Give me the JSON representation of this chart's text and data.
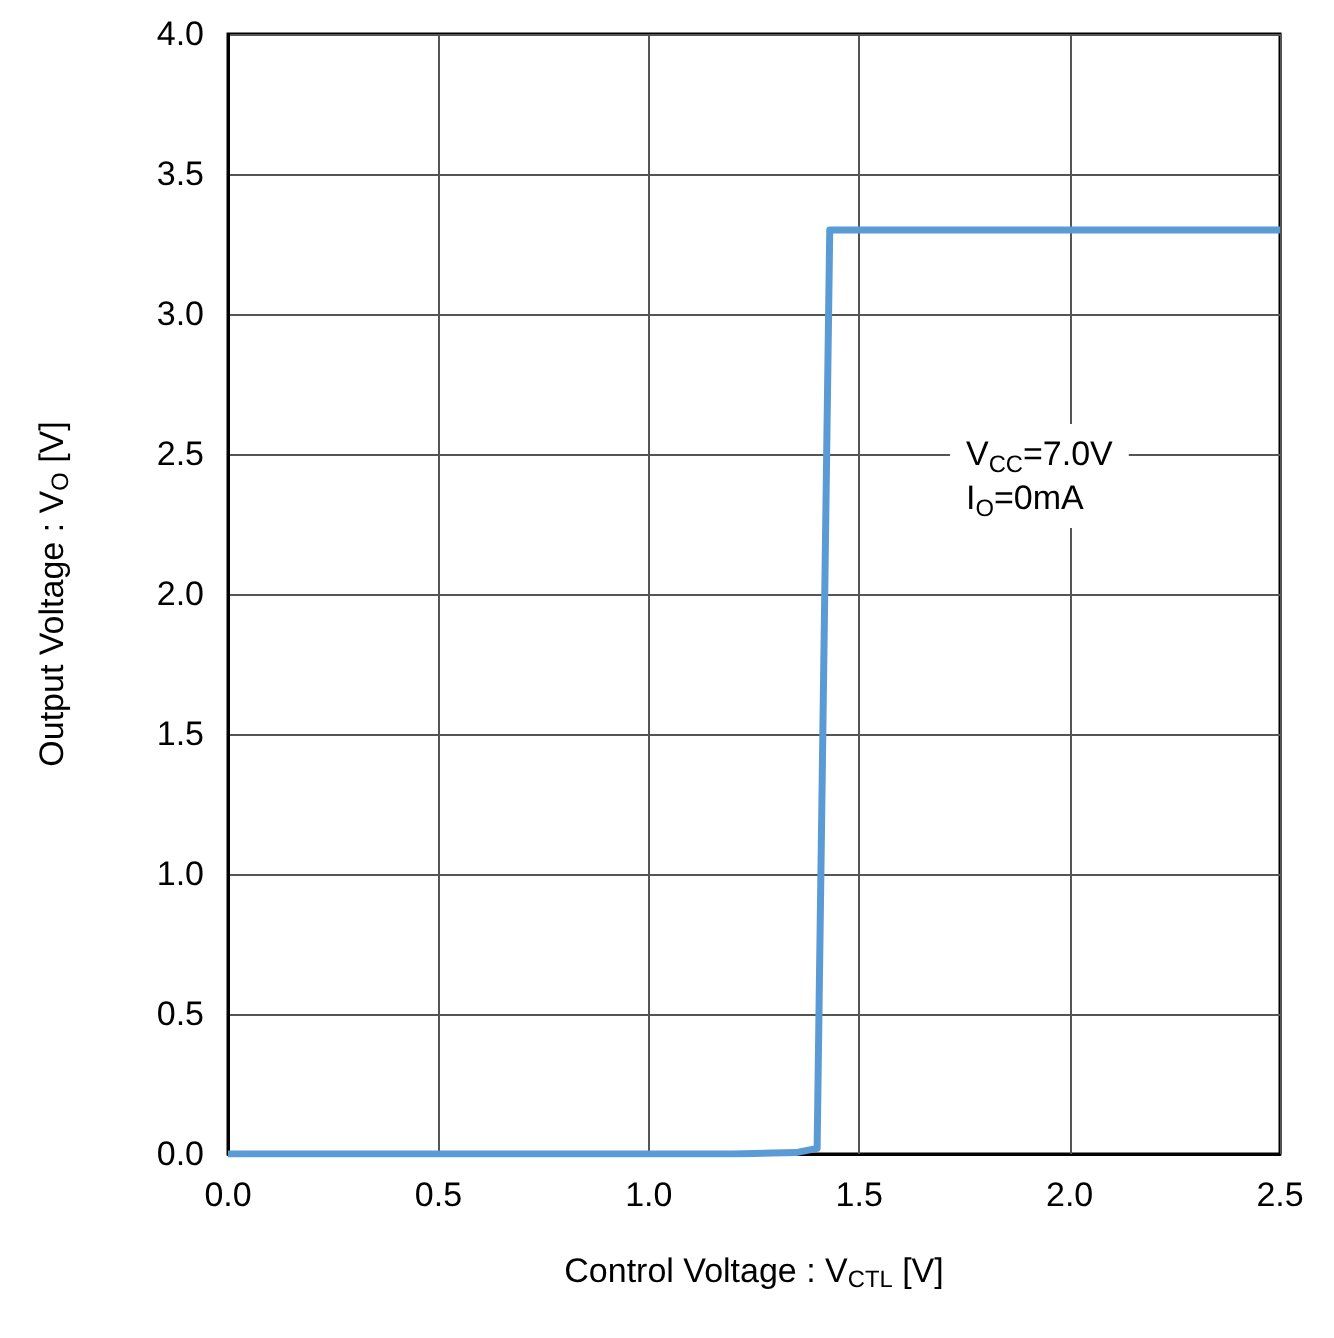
{
  "chart_data": {
    "type": "line",
    "xlabel": "Control Voltage : V$_{CTL}$ [V]",
    "ylabel": "Output Voltage : V$_{O}$ [V]",
    "annotations": [
      "V$_{CC}$=7.0V",
      "I$_{O}$=0mA"
    ],
    "x": [
      0,
      1.2,
      1.35,
      1.4,
      1.43,
      2.5
    ],
    "series": [
      {
        "color": "#5b9bd5",
        "values": [
          0,
          0,
          0.005,
          0.02,
          3.3,
          3.3
        ]
      }
    ],
    "xlim": [
      0,
      2.5
    ],
    "ylim": [
      0,
      4
    ],
    "xticks": [
      {
        "value": 0,
        "label": "0.0"
      },
      {
        "value": 0.5,
        "label": "0.5"
      },
      {
        "value": 1,
        "label": "1.0"
      },
      {
        "value": 1.5,
        "label": "1.5"
      },
      {
        "value": 2,
        "label": "2.0"
      },
      {
        "value": 2.5,
        "label": "2.5"
      }
    ],
    "yticks": [
      {
        "value": 0,
        "label": "0.0"
      },
      {
        "value": 0.5,
        "label": "0.5"
      },
      {
        "value": 1,
        "label": "1.0"
      },
      {
        "value": 1.5,
        "label": "1.5"
      },
      {
        "value": 2,
        "label": "2.0"
      },
      {
        "value": 2.5,
        "label": "2.5"
      },
      {
        "value": 3,
        "label": "3.0"
      },
      {
        "value": 3.5,
        "label": "3.5"
      },
      {
        "value": 4,
        "label": "4.0"
      }
    ],
    "grid": true,
    "marker": "none",
    "line_style": "solid"
  }
}
